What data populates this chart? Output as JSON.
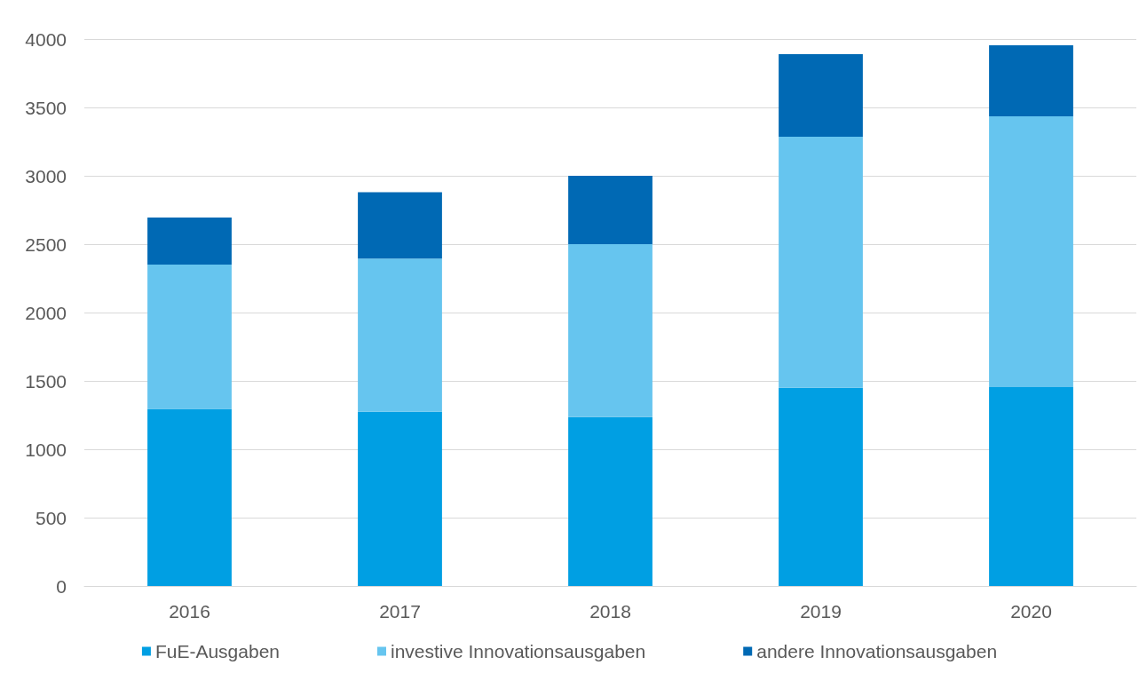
{
  "chart_data": {
    "type": "bar",
    "stacked": true,
    "categories": [
      "2016",
      "2017",
      "2018",
      "2019",
      "2020"
    ],
    "series": [
      {
        "name": "FuE-Ausgaben",
        "color": "#009fe3",
        "values": [
          1295,
          1275,
          1235,
          1450,
          1455
        ]
      },
      {
        "name": "investive Innovationsausgaben",
        "color": "#66c5ef",
        "values": [
          1055,
          1120,
          1265,
          1835,
          1980
        ]
      },
      {
        "name": "andere Innovationsausgaben",
        "color": "#0069b4",
        "values": [
          345,
          485,
          500,
          605,
          520
        ]
      }
    ],
    "ylim": [
      0,
      4000
    ],
    "yticks": [
      0,
      500,
      1000,
      1500,
      2000,
      2500,
      3000,
      3500,
      4000
    ],
    "grid": "y",
    "legend": "bottom"
  }
}
